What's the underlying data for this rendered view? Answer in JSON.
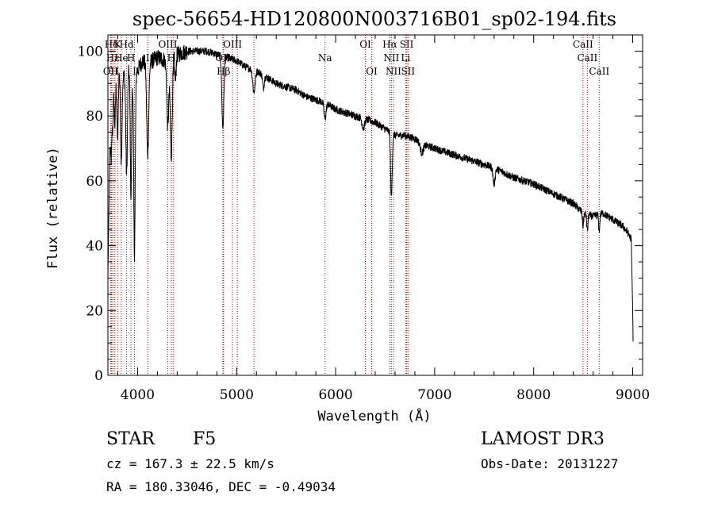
{
  "chart_data": {
    "type": "line",
    "title": "spec-56654-HD120800N003716B01_sp02-194.fits",
    "xlabel": "Wavelength (Å)",
    "ylabel": "Flux (relative)",
    "xlim": [
      3700,
      9100
    ],
    "ylim": [
      0,
      105
    ],
    "xticks": [
      4000,
      5000,
      6000,
      7000,
      8000,
      9000
    ],
    "yticks": [
      0,
      20,
      40,
      60,
      80,
      100
    ],
    "xtick_labels": [
      "4000",
      "5000",
      "6000",
      "7000",
      "8000",
      "9000"
    ],
    "ytick_labels": [
      "0",
      "20",
      "40",
      "60",
      "80",
      "100"
    ],
    "continuum": {
      "x": [
        3700,
        3720,
        3760,
        3800,
        3850,
        3900,
        3960,
        4000,
        4050,
        4100,
        4200,
        4300,
        4400,
        4500,
        4600,
        4700,
        4800,
        4900,
        5000,
        5100,
        5200,
        5300,
        5400,
        5500,
        5600,
        5700,
        5800,
        5900,
        6000,
        6100,
        6200,
        6300,
        6400,
        6500,
        6600,
        6700,
        6800,
        6900,
        7000,
        7200,
        7400,
        7600,
        7800,
        8000,
        8200,
        8400,
        8500,
        8600,
        8700,
        8800,
        8900,
        8950,
        8985,
        9000,
        9005
      ],
      "y": [
        30,
        70,
        90,
        95,
        92,
        94,
        96,
        94,
        97,
        96,
        98,
        97,
        99,
        100,
        100,
        100,
        99,
        98,
        97,
        95,
        94,
        92,
        90,
        89,
        88,
        86,
        85,
        84,
        82,
        81,
        80,
        79,
        78,
        76,
        74,
        74,
        73,
        71,
        70,
        68,
        66,
        64,
        61,
        59,
        56,
        53,
        50,
        49,
        50,
        48,
        46,
        44,
        42,
        20,
        8
      ]
    },
    "absorption_features": [
      {
        "x": 3734,
        "depth": 10,
        "width": 6
      },
      {
        "x": 3750,
        "depth": 8,
        "width": 6
      },
      {
        "x": 3771,
        "depth": 14,
        "width": 6
      },
      {
        "x": 3798,
        "depth": 22,
        "width": 7
      },
      {
        "x": 3835,
        "depth": 28,
        "width": 7
      },
      {
        "x": 3889,
        "depth": 32,
        "width": 8
      },
      {
        "x": 3933,
        "depth": 40,
        "width": 7
      },
      {
        "x": 3968,
        "depth": 58,
        "width": 8
      },
      {
        "x": 4102,
        "depth": 28,
        "width": 10
      },
      {
        "x": 4305,
        "depth": 20,
        "width": 10
      },
      {
        "x": 4340,
        "depth": 30,
        "width": 10
      },
      {
        "x": 4383,
        "depth": 8,
        "width": 6
      },
      {
        "x": 4861,
        "depth": 22,
        "width": 10
      },
      {
        "x": 5175,
        "depth": 7,
        "width": 12
      },
      {
        "x": 5270,
        "depth": 4,
        "width": 8
      },
      {
        "x": 5893,
        "depth": 5,
        "width": 10
      },
      {
        "x": 6280,
        "depth": 3,
        "width": 12
      },
      {
        "x": 6563,
        "depth": 20,
        "width": 8
      },
      {
        "x": 6870,
        "depth": 3,
        "width": 15
      },
      {
        "x": 7600,
        "depth": 5,
        "width": 10
      },
      {
        "x": 8498,
        "depth": 4,
        "width": 6
      },
      {
        "x": 8542,
        "depth": 5,
        "width": 6
      },
      {
        "x": 8662,
        "depth": 5,
        "width": 6
      }
    ],
    "noise_amplitude": 1.2,
    "reference_lines": [
      {
        "label": "Hδ",
        "x": 3737,
        "row": 0
      },
      {
        "label": "OII",
        "x": 3727,
        "row": 2
      },
      {
        "label": "Hε",
        "x": 3750,
        "row": 1
      },
      {
        "label": "H",
        "x": 3771,
        "row": 2
      },
      {
        "label": "K",
        "x": 3798,
        "row": 0
      },
      {
        "label": "He",
        "x": 3835,
        "row": 1
      },
      {
        "label": "Hd",
        "x": 3889,
        "row": 0
      },
      {
        "label": "H",
        "x": 3933,
        "row": 1
      },
      {
        "label": "I",
        "x": 3968,
        "row": 2
      },
      {
        "label": "I",
        "x": 4102,
        "row": 1
      },
      {
        "label": "OIII",
        "x": 4305,
        "row": 0
      },
      {
        "label": "H",
        "x": 4340,
        "row": 1
      },
      {
        "label": "I",
        "x": 4363,
        "row": 2
      },
      {
        "label": "OIII",
        "x": 4959,
        "row": 0
      },
      {
        "label": "OII",
        "x": 4861,
        "row": 1
      },
      {
        "label": "Hβ",
        "x": 4868,
        "row": 2
      },
      {
        "label": "",
        "x": 5007,
        "row": 1
      },
      {
        "label": "",
        "x": 5175,
        "row": 2
      },
      {
        "label": "Na",
        "x": 5893,
        "row": 1
      },
      {
        "label": "OI",
        "x": 6300,
        "row": 0
      },
      {
        "label": "OI",
        "x": 6364,
        "row": 2
      },
      {
        "label": "Hα",
        "x": 6548,
        "row": 0
      },
      {
        "label": "NII",
        "x": 6563,
        "row": 1
      },
      {
        "label": "NII",
        "x": 6584,
        "row": 2
      },
      {
        "label": "SII",
        "x": 6717,
        "row": 0
      },
      {
        "label": "Li",
        "x": 6707,
        "row": 1
      },
      {
        "label": "SII",
        "x": 6731,
        "row": 2
      },
      {
        "label": "CaII",
        "x": 8498,
        "row": 0
      },
      {
        "label": "CaII",
        "x": 8542,
        "row": 1
      },
      {
        "label": "CaII",
        "x": 8662,
        "row": 2
      }
    ]
  },
  "info": {
    "object_class": "STAR",
    "subclass": "F5",
    "survey": "LAMOST DR3",
    "redshift": "cz = 167.3 ± 22.5 km/s",
    "obs_date": "Obs-Date: 20131227",
    "coords": "RA = 180.33046, DEC =  -0.49034"
  },
  "colors": {
    "spectrum": "#000000",
    "reference_line": "#c00000",
    "axes": "#000000"
  }
}
